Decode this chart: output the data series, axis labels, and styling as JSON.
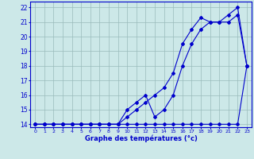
{
  "xlabel": "Graphe des températures (°c)",
  "ylim": [
    13.8,
    22.4
  ],
  "xlim": [
    -0.5,
    23.5
  ],
  "yticks": [
    14,
    15,
    16,
    17,
    18,
    19,
    20,
    21,
    22
  ],
  "xticks": [
    0,
    1,
    2,
    3,
    4,
    5,
    6,
    7,
    8,
    9,
    10,
    11,
    12,
    13,
    14,
    15,
    16,
    17,
    18,
    19,
    20,
    21,
    22,
    23
  ],
  "bg_color": "#cce8e8",
  "grid_color": "#99bbbb",
  "line_color": "#0000cc",
  "line1_x": [
    0,
    1,
    2,
    3,
    4,
    5,
    6,
    7,
    8,
    9,
    10,
    11,
    12,
    13,
    14,
    15,
    16,
    17,
    18,
    19,
    20,
    21,
    22,
    23
  ],
  "line1_y": [
    14,
    14,
    14,
    14,
    14,
    14,
    14,
    14,
    14,
    14,
    14,
    14,
    14,
    14,
    14,
    14,
    14,
    14,
    14,
    14,
    14,
    14,
    14,
    18
  ],
  "line2_x": [
    0,
    1,
    2,
    3,
    4,
    5,
    6,
    7,
    8,
    9,
    10,
    11,
    12,
    13,
    14,
    15,
    16,
    17,
    18,
    19,
    20,
    21,
    22,
    23
  ],
  "line2_y": [
    14,
    14,
    14,
    14,
    14,
    14,
    14,
    14,
    14,
    14,
    14.5,
    15,
    15.5,
    16,
    16.5,
    17.5,
    19.5,
    20.5,
    21.3,
    21,
    21,
    21,
    21.5,
    18
  ],
  "line3_x": [
    0,
    1,
    2,
    3,
    4,
    5,
    6,
    7,
    8,
    9,
    10,
    11,
    12,
    13,
    14,
    15,
    16,
    17,
    18,
    19,
    20,
    21,
    22,
    23
  ],
  "line3_y": [
    14,
    14,
    14,
    14,
    14,
    14,
    14,
    14,
    14,
    14,
    15,
    15.5,
    16,
    14.5,
    15,
    16,
    18.0,
    19.5,
    20.5,
    21,
    21,
    21.5,
    22,
    18
  ]
}
